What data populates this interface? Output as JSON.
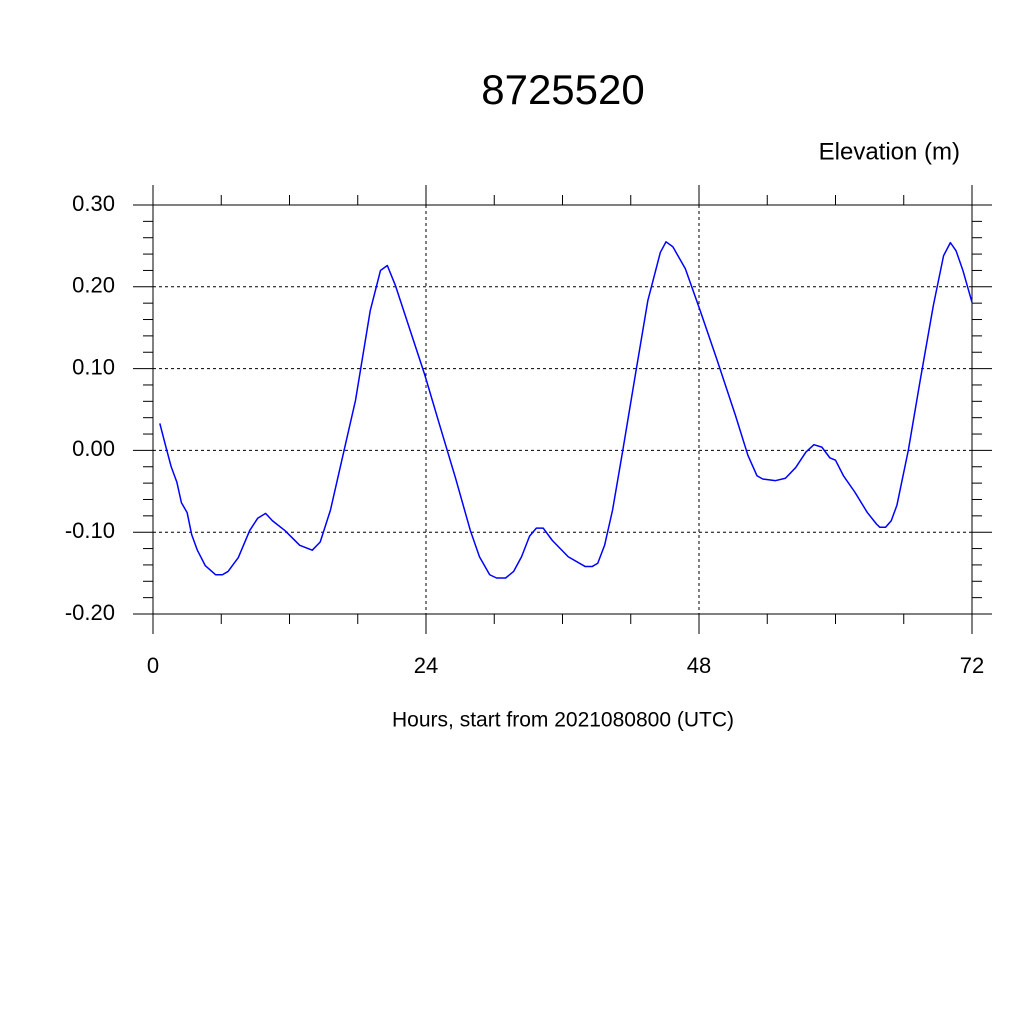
{
  "chart_data": {
    "type": "line",
    "title": "8725520",
    "subtitle": "Elevation (m)",
    "x_label": "Hours, start from 2021080800 (UTC)",
    "x": [
      0.6,
      1.1,
      1.6,
      2.1,
      2.5,
      3.0,
      3.4,
      3.9,
      4.6,
      5.5,
      6.1,
      6.6,
      7.5,
      8.5,
      9.2,
      9.9,
      10.5,
      11.6,
      12.9,
      14.0,
      14.7,
      15.6,
      16.6,
      17.8,
      19.1,
      20.0,
      20.6,
      21.3,
      22.6,
      23.9,
      25.2,
      26.6,
      27.9,
      28.7,
      29.6,
      30.2,
      31.0,
      31.7,
      32.4,
      33.1,
      33.7,
      34.3,
      35.1,
      36.5,
      38.0,
      38.6,
      39.1,
      39.7,
      40.4,
      41.3,
      42.4,
      43.5,
      44.6,
      45.1,
      45.7,
      46.8,
      48.1,
      49.6,
      51.2,
      52.3,
      53.1,
      53.6,
      54.7,
      55.6,
      56.5,
      57.4,
      58.1,
      58.8,
      59.5,
      60.0,
      60.7,
      61.7,
      62.8,
      63.6,
      63.9,
      64.4,
      64.9,
      65.4,
      66.4,
      67.4,
      68.6,
      69.5,
      70.1,
      70.6,
      71.2,
      72.0
    ],
    "series": [
      {
        "name": "Elevation",
        "color": "#0000ff",
        "values": [
          0.033,
          0.006,
          -0.02,
          -0.039,
          -0.064,
          -0.076,
          -0.103,
          -0.122,
          -0.141,
          -0.152,
          -0.152,
          -0.148,
          -0.131,
          -0.098,
          -0.083,
          -0.077,
          -0.086,
          -0.098,
          -0.116,
          -0.122,
          -0.112,
          -0.073,
          -0.012,
          0.061,
          0.171,
          0.22,
          0.226,
          0.202,
          0.147,
          0.092,
          0.031,
          -0.034,
          -0.098,
          -0.13,
          -0.152,
          -0.156,
          -0.156,
          -0.148,
          -0.13,
          -0.105,
          -0.095,
          -0.095,
          -0.11,
          -0.13,
          -0.142,
          -0.142,
          -0.138,
          -0.116,
          -0.073,
          0.0,
          0.092,
          0.183,
          0.242,
          0.255,
          0.249,
          0.222,
          0.171,
          0.11,
          0.043,
          -0.006,
          -0.031,
          -0.035,
          -0.037,
          -0.034,
          -0.021,
          -0.002,
          0.007,
          0.004,
          -0.009,
          -0.012,
          -0.031,
          -0.051,
          -0.076,
          -0.09,
          -0.094,
          -0.094,
          -0.086,
          -0.067,
          0.0,
          0.082,
          0.177,
          0.238,
          0.254,
          0.244,
          0.22,
          0.181
        ]
      }
    ],
    "xlim": [
      0,
      72
    ],
    "xticks": [
      0,
      24,
      48,
      72
    ],
    "ylim": [
      -0.2,
      0.3
    ],
    "yticks": [
      {
        "value": -0.2,
        "label": "-0.20"
      },
      {
        "value": -0.1,
        "label": "-0.10"
      },
      {
        "value": 0,
        "label": "0.00"
      },
      {
        "value": 0.1,
        "label": "0.10"
      },
      {
        "value": 0.2,
        "label": "0.20"
      },
      {
        "value": 0.3,
        "label": "0.30"
      }
    ],
    "grid": true
  }
}
